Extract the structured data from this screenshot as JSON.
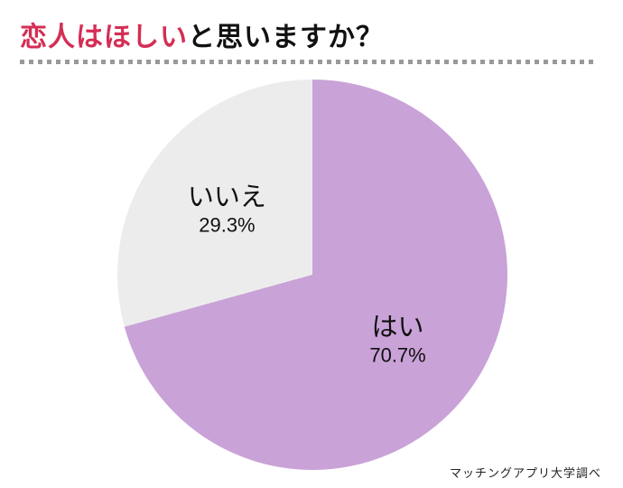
{
  "title": {
    "highlight": "恋人はほしい",
    "rest": "と思いますか？"
  },
  "source": "マッチングアプリ大学調べ",
  "colors": {
    "title_highlight": "#d42e55",
    "title_rest": "#111111",
    "divider": "#999999"
  },
  "chart_data": {
    "type": "pie",
    "title": "恋人はほしいと思いますか？",
    "labels": [
      "はい",
      "いいえ"
    ],
    "values": [
      70.7,
      29.3
    ],
    "value_labels": [
      "70.7%",
      "29.3%"
    ],
    "colors": [
      "#c9a2d8",
      "#ececec"
    ],
    "start_angle_deg": 0,
    "direction": "clockwise",
    "legend": "none",
    "label_position": "inside",
    "source_note": "マッチングアプリ大学調べ"
  }
}
